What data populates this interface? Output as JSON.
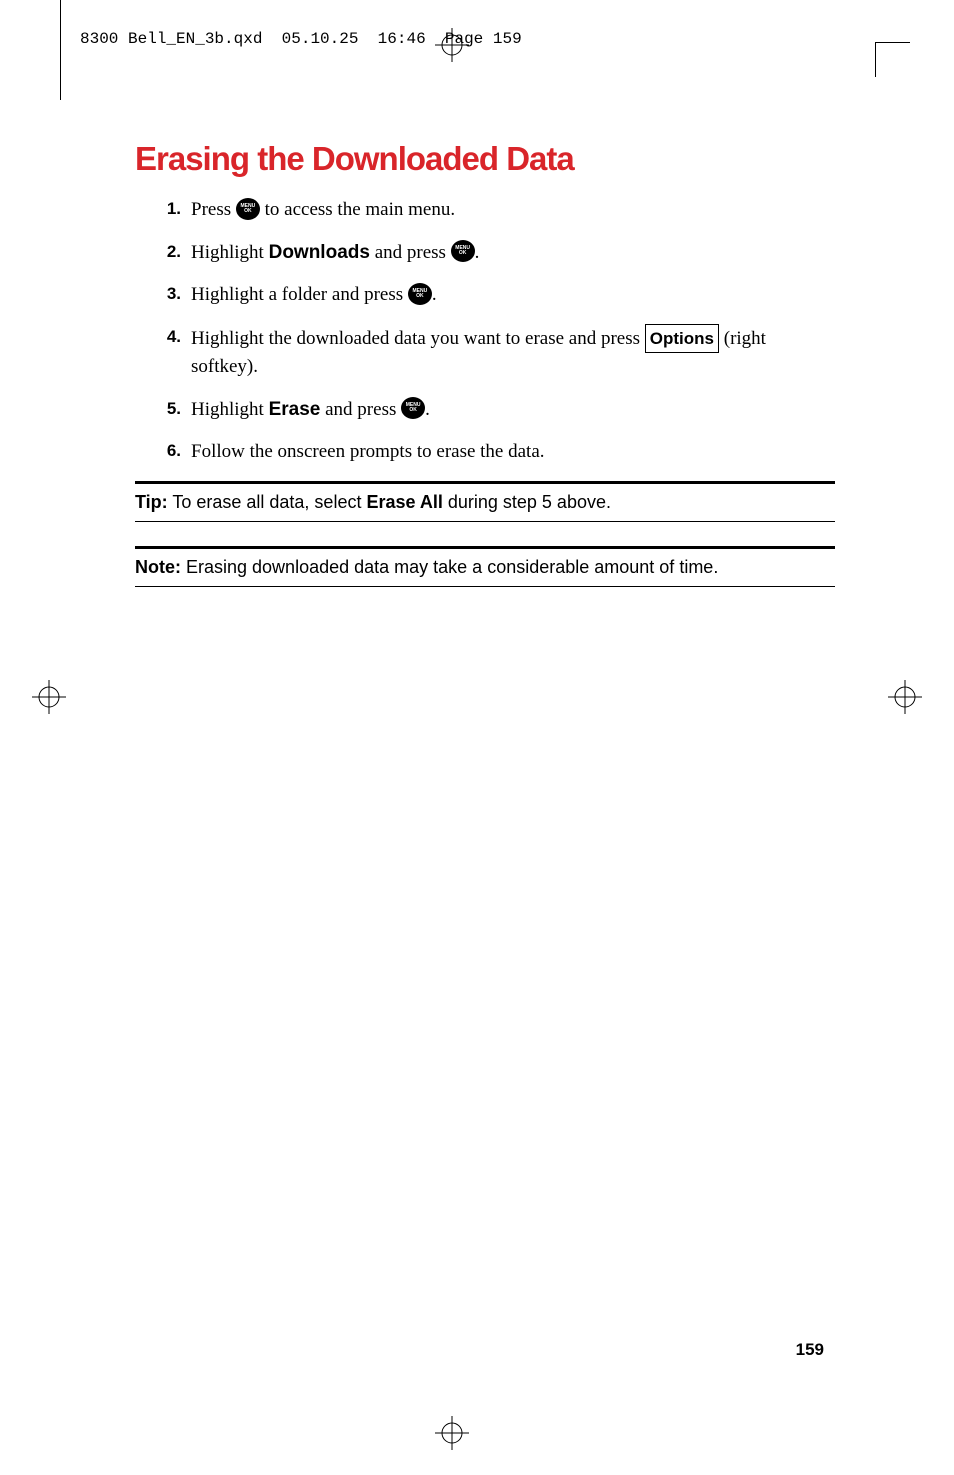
{
  "colors": {
    "accent": "#d9252a",
    "text": "#000000",
    "background": "#ffffff"
  },
  "header": {
    "filename": "8300 Bell_EN_3b.qxd",
    "date": "05.10.25",
    "time": "16:46",
    "page_label": "Page 159"
  },
  "title": "Erasing the Downloaded Data",
  "steps": [
    {
      "num": "1.",
      "parts": [
        "Press ",
        {
          "icon": "menu"
        },
        " to access the main menu."
      ]
    },
    {
      "num": "2.",
      "parts": [
        "Highlight ",
        {
          "bold": "Downloads"
        },
        " and press ",
        {
          "icon": "menu"
        },
        "."
      ]
    },
    {
      "num": "3.",
      "parts": [
        "Highlight a folder and press ",
        {
          "icon": "menu"
        },
        "."
      ]
    },
    {
      "num": "4.",
      "parts": [
        "Highlight the downloaded data you want to erase and press ",
        {
          "box": "Options"
        },
        " (right softkey)."
      ]
    },
    {
      "num": "5.",
      "parts": [
        "Highlight ",
        {
          "bold": "Erase"
        },
        " and press ",
        {
          "icon": "menu"
        },
        "."
      ]
    },
    {
      "num": "6.",
      "parts": [
        "Follow the onscreen prompts to erase the data."
      ]
    }
  ],
  "tip": {
    "label": "Tip:",
    "before": " To erase all data, select ",
    "bold": "Erase All",
    "after": " during step 5 above."
  },
  "note": {
    "label": "Note:",
    "text": " Erasing downloaded data may take a considerable amount of time."
  },
  "page_number": "159",
  "icon_label": {
    "top": "MENU",
    "bottom": "OK"
  }
}
